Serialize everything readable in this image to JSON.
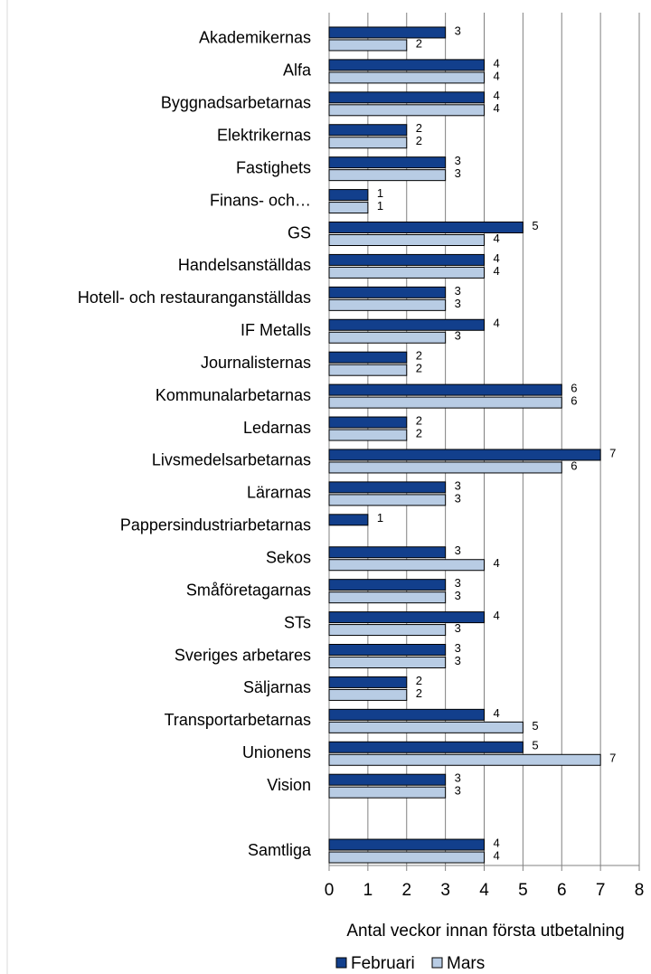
{
  "chart_data": {
    "type": "bar",
    "orientation": "horizontal",
    "x_label": "Antal veckor innan första utbetalning",
    "categories": [
      "Akademikernas",
      "Alfa",
      "Byggnadsarbetarnas",
      "Elektrikernas",
      "Fastighets",
      "Finans- och…",
      "GS",
      "Handelsanställdas",
      "Hotell- och restauranganställdas",
      "IF Metalls",
      "Journalisternas",
      "Kommunalarbetarnas",
      "Ledarnas",
      "Livsmedelsarbetarnas",
      "Lärarnas",
      "Pappersindustriarbetarnas",
      "Sekos",
      "Småföretagarnas",
      "STs",
      "Sveriges arbetares",
      "Säljarnas",
      "Transportarbetarnas",
      "Unionens",
      "Vision",
      null,
      "Samtliga"
    ],
    "series": [
      {
        "name": "Februari",
        "color": "#123f8c",
        "values": [
          3,
          4,
          4,
          2,
          3,
          1,
          5,
          4,
          3,
          4,
          2,
          6,
          2,
          7,
          3,
          1,
          3,
          3,
          4,
          3,
          2,
          4,
          5,
          3,
          null,
          4
        ]
      },
      {
        "name": "Mars",
        "color": "#b8cce4",
        "values": [
          2,
          4,
          4,
          2,
          3,
          1,
          4,
          4,
          3,
          3,
          2,
          6,
          2,
          6,
          3,
          null,
          4,
          3,
          3,
          3,
          2,
          5,
          7,
          3,
          null,
          4
        ]
      }
    ],
    "xlim": [
      0,
      8
    ],
    "xticks": [
      0,
      1,
      2,
      3,
      4,
      5,
      6,
      7,
      8
    ],
    "grid": true,
    "legend": "bottom"
  }
}
